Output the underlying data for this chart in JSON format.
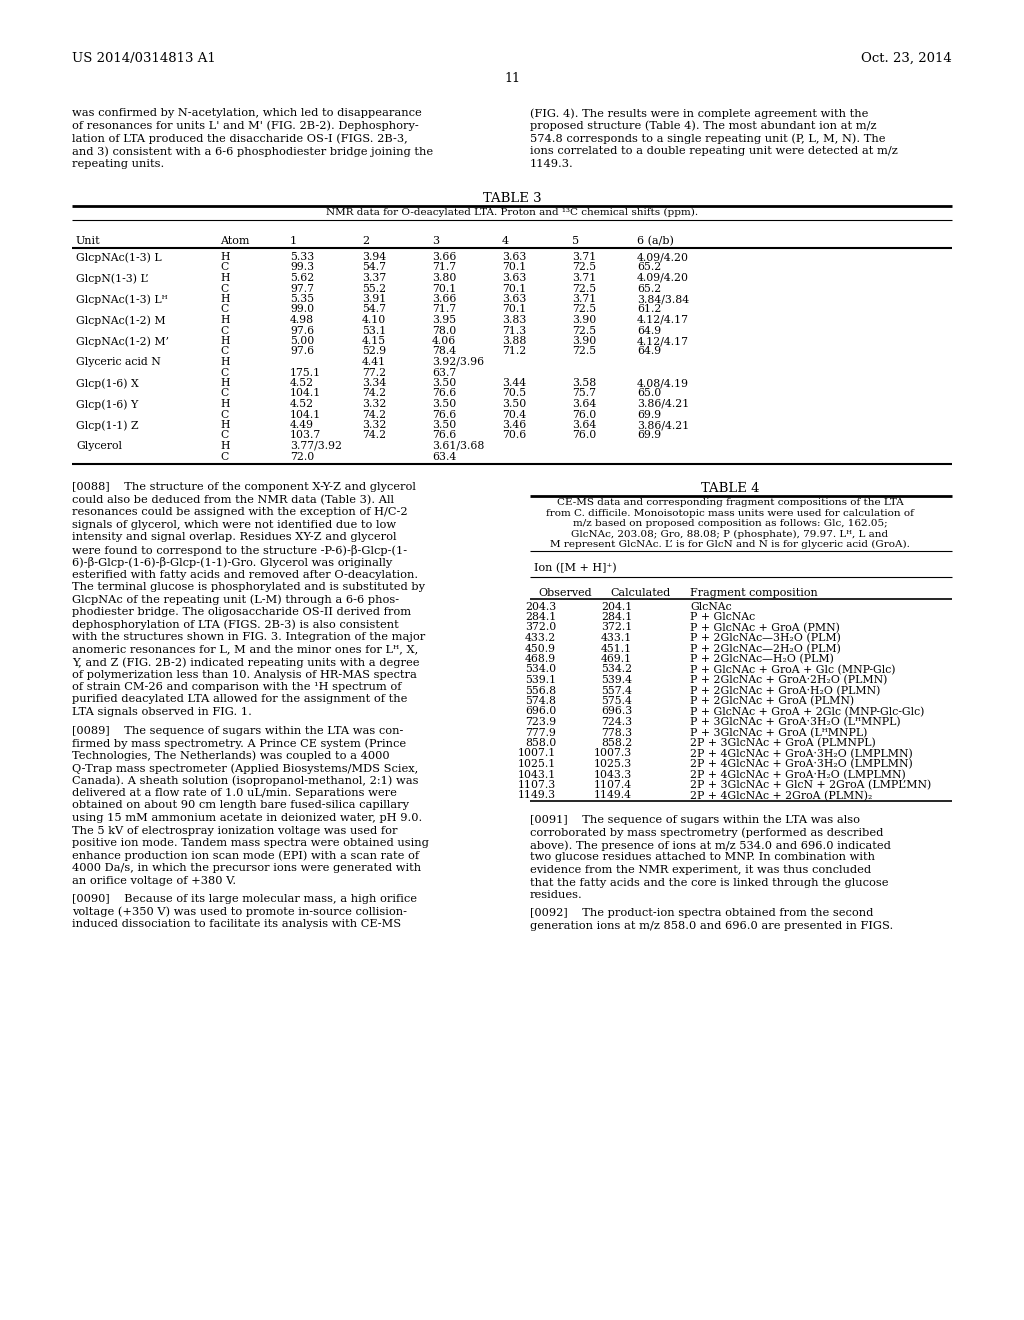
{
  "header_left": "US 2014/0314813 A1",
  "header_right": "Oct. 23, 2014",
  "page_num": "11",
  "left_top_lines": [
    "was confirmed by N-acetylation, which led to disappearance",
    "of resonances for units L' and M' (FIG. 2B-2). Dephosphory-",
    "lation of LTA produced the disaccharide OS-I (FIGS. 2B-3,",
    "and 3) consistent with a 6-6 phosphodiester bridge joining the",
    "repeating units."
  ],
  "right_top_lines": [
    "(FIG. 4). The results were in complete agreement with the",
    "proposed structure (Table 4). The most abundant ion at m/z",
    "574.8 corresponds to a single repeating unit (P, L, M, N). The",
    "ions correlated to a double repeating unit were detected at m/z",
    "1149.3."
  ],
  "table3_title": "TABLE 3",
  "table3_subtitle": "NMR data for O-deacylated LTA. Proton and ¹³C chemical shifts (ppm).",
  "table3_headers": [
    "Unit",
    "Atom",
    "1",
    "2",
    "3",
    "4",
    "5",
    "6 (a/b)"
  ],
  "table3_rows": [
    [
      "GlcpNAc(1-3) L",
      "H",
      "5.33",
      "3.94",
      "3.66",
      "3.63",
      "3.71",
      "4.09/4.20"
    ],
    [
      "",
      "C",
      "99.3",
      "54.7",
      "71.7",
      "70.1",
      "72.5",
      "65.2"
    ],
    [
      "GlcpN(1-3) L’",
      "H",
      "5.62",
      "3.37",
      "3.80",
      "3.63",
      "3.71",
      "4.09/4.20"
    ],
    [
      "",
      "C",
      "97.7",
      "55.2",
      "70.1",
      "70.1",
      "72.5",
      "65.2"
    ],
    [
      "GlcpNAc(1-3) Lᴴ",
      "H",
      "5.35",
      "3.91",
      "3.66",
      "3.63",
      "3.71",
      "3.84/3.84"
    ],
    [
      "",
      "C",
      "99.0",
      "54.7",
      "71.7",
      "70.1",
      "72.5",
      "61.2"
    ],
    [
      "GlcpNAc(1-2) M",
      "H",
      "4.98",
      "4.10",
      "3.95",
      "3.83",
      "3.90",
      "4.12/4.17"
    ],
    [
      "",
      "C",
      "97.6",
      "53.1",
      "78.0",
      "71.3",
      "72.5",
      "64.9"
    ],
    [
      "GlcpNAc(1-2) M’",
      "H",
      "5.00",
      "4.15",
      "4.06",
      "3.88",
      "3.90",
      "4.12/4.17"
    ],
    [
      "",
      "C",
      "97.6",
      "52.9",
      "78.4",
      "71.2",
      "72.5",
      "64.9"
    ],
    [
      "Glyceric acid N",
      "H",
      "",
      "4.41",
      "3.92/3.96",
      "",
      "",
      ""
    ],
    [
      "",
      "C",
      "175.1",
      "77.2",
      "63.7",
      "",
      "",
      ""
    ],
    [
      "Glcp(1-6) X",
      "H",
      "4.52",
      "3.34",
      "3.50",
      "3.44",
      "3.58",
      "4.08/4.19"
    ],
    [
      "",
      "C",
      "104.1",
      "74.2",
      "76.6",
      "70.5",
      "75.7",
      "65.0"
    ],
    [
      "Glcp(1-6) Y",
      "H",
      "4.52",
      "3.32",
      "3.50",
      "3.50",
      "3.64",
      "3.86/4.21"
    ],
    [
      "",
      "C",
      "104.1",
      "74.2",
      "76.6",
      "70.4",
      "76.0",
      "69.9"
    ],
    [
      "Glcp(1-1) Z",
      "H",
      "4.49",
      "3.32",
      "3.50",
      "3.46",
      "3.64",
      "3.86/4.21"
    ],
    [
      "",
      "C",
      "103.7",
      "74.2",
      "76.6",
      "70.6",
      "76.0",
      "69.9"
    ],
    [
      "Glycerol",
      "H",
      "3.77/3.92",
      "",
      "3.61/3.68",
      "",
      "",
      ""
    ],
    [
      "",
      "C",
      "72.0",
      "",
      "63.4",
      "",
      "",
      ""
    ]
  ],
  "para_0088_lines": [
    "[0088]    The structure of the component X-Y-Z and glycerol",
    "could also be deduced from the NMR data (Table 3). All",
    "resonances could be assigned with the exception of H/C-2",
    "signals of glycerol, which were not identified due to low",
    "intensity and signal overlap. Residues XY-Z and glycerol",
    "were found to correspond to the structure -P-6)-β-Glcp-(1-",
    "6)-β-Glcp-(1-6)-β-Glcp-(1-1)-Gro. Glycerol was originally",
    "esterified with fatty acids and removed after O-deacylation.",
    "The terminal glucose is phosphorylated and is substituted by",
    "GlcpNAc of the repeating unit (L-M) through a 6-6 phos-",
    "phodiester bridge. The oligosaccharide OS-II derived from",
    "dephosphorylation of LTA (FIGS. 2B-3) is also consistent",
    "with the structures shown in FIG. 3. Integration of the major",
    "anomeric resonances for L, M and the minor ones for Lᴴ, X,",
    "Y, and Z (FIG. 2B-2) indicated repeating units with a degree",
    "of polymerization less than 10. Analysis of HR-MAS spectra",
    "of strain CM-26 and comparison with the ¹H spectrum of",
    "purified deacylated LTA allowed for the assignment of the",
    "LTA signals observed in FIG. 1."
  ],
  "para_0089_lines": [
    "[0089]    The sequence of sugars within the LTA was con-",
    "firmed by mass spectrometry. A Prince CE system (Prince",
    "Technologies, The Netherlands) was coupled to a 4000",
    "Q-Trap mass spectrometer (Applied Biosystems/MDS Sciex,",
    "Canada). A sheath solution (isopropanol-methanol, 2:1) was",
    "delivered at a flow rate of 1.0 uL/min. Separations were",
    "obtained on about 90 cm length bare fused-silica capillary",
    "using 15 mM ammonium acetate in deionized water, pH 9.0.",
    "The 5 kV of electrospray ionization voltage was used for",
    "positive ion mode. Tandem mass spectra were obtained using",
    "enhance production ion scan mode (EPI) with a scan rate of",
    "4000 Da/s, in which the precursor ions were generated with",
    "an orifice voltage of +380 V."
  ],
  "para_0090_lines": [
    "[0090]    Because of its large molecular mass, a high orifice",
    "voltage (+350 V) was used to promote in-source collision-",
    "induced dissociation to facilitate its analysis with CE-MS"
  ],
  "table4_title": "TABLE 4",
  "table4_subtitle_lines": [
    "CE-MS data and corresponding fragment compositions of the LTA",
    "from C. difficile. Monoisotopic mass units were used for calculation of",
    "m/z based on proposed composition as follows: Glc, 162.05;",
    "GlcNAc, 203.08; Gro, 88.08; P (phosphate), 79.97. Lᴴ, L and",
    "M represent GlcNAc. L’ is for GlcN and N is for glyceric acid (GroA)."
  ],
  "table4_ion_label": "Ion ([M + H]⁺)",
  "table4_rows": [
    [
      "204.3",
      "204.1",
      "GlcNAc"
    ],
    [
      "284.1",
      "284.1",
      "P + GlcNAc"
    ],
    [
      "372.0",
      "372.1",
      "P + GlcNAc + GroA (PMN)"
    ],
    [
      "433.2",
      "433.1",
      "P + 2GlcNAc—3H₂O (PLM)"
    ],
    [
      "450.9",
      "451.1",
      "P + 2GlcNAc—2H₂O (PLM)"
    ],
    [
      "468.9",
      "469.1",
      "P + 2GlcNAc—H₂O (PLM)"
    ],
    [
      "534.0",
      "534.2",
      "P + GlcNAc + GroA + Glc (MNP-Glc)"
    ],
    [
      "539.1",
      "539.4",
      "P + 2GlcNAc + GroA·2H₂O (PLMN)"
    ],
    [
      "556.8",
      "557.4",
      "P + 2GlcNAc + GroA·H₂O (PLMN)"
    ],
    [
      "574.8",
      "575.4",
      "P + 2GlcNAc + GroA (PLMN)"
    ],
    [
      "696.0",
      "696.3",
      "P + GlcNAc + GroA + 2Glc (MNP-Glc-Glc)"
    ],
    [
      "723.9",
      "724.3",
      "P + 3GlcNAc + GroA·3H₂O (LᴴMNPL)"
    ],
    [
      "777.9",
      "778.3",
      "P + 3GlcNAc + GroA (LᴴMNPL)"
    ],
    [
      "858.0",
      "858.2",
      "2P + 3GlcNAc + GroA (PLMNPL)"
    ],
    [
      "1007.1",
      "1007.3",
      "2P + 4GlcNAc + GroA·3H₂O (LMPLMN)"
    ],
    [
      "1025.1",
      "1025.3",
      "2P + 4GlcNAc + GroA·3H₂O (LMPLMN)"
    ],
    [
      "1043.1",
      "1043.3",
      "2P + 4GlcNAc + GroA·H₂O (LMPLMN)"
    ],
    [
      "1107.3",
      "1107.4",
      "2P + 3GlcNAc + GlcN + 2GroA (LMPL’MN)"
    ],
    [
      "1149.3",
      "1149.4",
      "2P + 4GlcNAc + 2GroA (PLMN)₂"
    ]
  ],
  "para_0091_lines": [
    "[0091]    The sequence of sugars within the LTA was also",
    "corroborated by mass spectrometry (performed as described",
    "above). The presence of ions at m/z 534.0 and 696.0 indicated",
    "two glucose residues attached to MNP. In combination with",
    "evidence from the NMR experiment, it was thus concluded",
    "that the fatty acids and the core is linked through the glucose",
    "residues."
  ],
  "para_0092_lines": [
    "[0092]    The product-ion spectra obtained from the second",
    "generation ions at m/z 858.0 and 696.0 are presented in FIGS."
  ]
}
